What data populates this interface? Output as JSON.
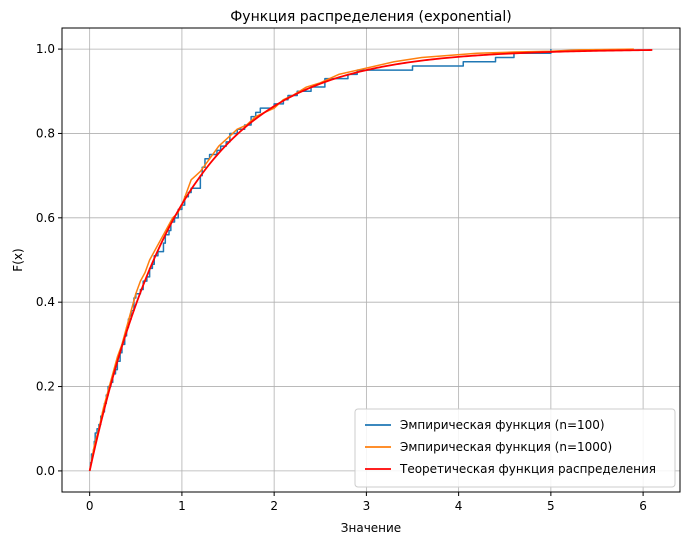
{
  "chart_data": {
    "type": "line",
    "title": "Функция распределения (exponential)",
    "xlabel": "Значение",
    "ylabel": "F(x)",
    "xlim": [
      -0.3,
      6.4
    ],
    "ylim": [
      -0.05,
      1.05
    ],
    "xticks": [
      0,
      1,
      2,
      3,
      4,
      5,
      6
    ],
    "yticks": [
      0.0,
      0.2,
      0.4,
      0.6,
      0.8,
      1.0
    ],
    "grid": true,
    "legend_position": "bottom-right",
    "series": [
      {
        "name": "Эмпирическая функция (n=100)",
        "color": "#1f77b4",
        "style": "step",
        "points": [
          [
            0.0,
            0.01
          ],
          [
            0.01,
            0.02
          ],
          [
            0.02,
            0.04
          ],
          [
            0.04,
            0.05
          ],
          [
            0.05,
            0.07
          ],
          [
            0.06,
            0.09
          ],
          [
            0.08,
            0.1
          ],
          [
            0.1,
            0.11
          ],
          [
            0.12,
            0.13
          ],
          [
            0.14,
            0.14
          ],
          [
            0.16,
            0.16
          ],
          [
            0.18,
            0.18
          ],
          [
            0.2,
            0.2
          ],
          [
            0.23,
            0.21
          ],
          [
            0.25,
            0.23
          ],
          [
            0.28,
            0.24
          ],
          [
            0.3,
            0.26
          ],
          [
            0.33,
            0.28
          ],
          [
            0.35,
            0.3
          ],
          [
            0.38,
            0.32
          ],
          [
            0.4,
            0.34
          ],
          [
            0.42,
            0.36
          ],
          [
            0.45,
            0.38
          ],
          [
            0.48,
            0.41
          ],
          [
            0.5,
            0.42
          ],
          [
            0.55,
            0.43
          ],
          [
            0.58,
            0.45
          ],
          [
            0.62,
            0.46
          ],
          [
            0.65,
            0.48
          ],
          [
            0.68,
            0.49
          ],
          [
            0.7,
            0.51
          ],
          [
            0.74,
            0.52
          ],
          [
            0.8,
            0.54
          ],
          [
            0.82,
            0.56
          ],
          [
            0.86,
            0.57
          ],
          [
            0.88,
            0.59
          ],
          [
            0.92,
            0.6
          ],
          [
            0.96,
            0.62
          ],
          [
            1.0,
            0.63
          ],
          [
            1.03,
            0.65
          ],
          [
            1.07,
            0.66
          ],
          [
            1.1,
            0.67
          ],
          [
            1.2,
            0.7
          ],
          [
            1.22,
            0.72
          ],
          [
            1.25,
            0.74
          ],
          [
            1.3,
            0.75
          ],
          [
            1.38,
            0.76
          ],
          [
            1.42,
            0.77
          ],
          [
            1.48,
            0.78
          ],
          [
            1.52,
            0.8
          ],
          [
            1.6,
            0.81
          ],
          [
            1.68,
            0.82
          ],
          [
            1.75,
            0.84
          ],
          [
            1.8,
            0.85
          ],
          [
            1.85,
            0.86
          ],
          [
            2.0,
            0.87
          ],
          [
            2.1,
            0.88
          ],
          [
            2.15,
            0.89
          ],
          [
            2.25,
            0.9
          ],
          [
            2.4,
            0.91
          ],
          [
            2.55,
            0.93
          ],
          [
            2.8,
            0.94
          ],
          [
            2.9,
            0.95
          ],
          [
            3.5,
            0.96
          ],
          [
            4.05,
            0.97
          ],
          [
            4.4,
            0.98
          ],
          [
            4.6,
            0.99
          ],
          [
            5.0,
            1.0
          ]
        ]
      },
      {
        "name": "Эмпирическая функция (n=1000)",
        "color": "#ff7f0e",
        "style": "line",
        "points": [
          [
            0.0,
            0.0
          ],
          [
            0.05,
            0.06
          ],
          [
            0.1,
            0.1
          ],
          [
            0.15,
            0.15
          ],
          [
            0.2,
            0.19
          ],
          [
            0.25,
            0.23
          ],
          [
            0.3,
            0.27
          ],
          [
            0.35,
            0.3
          ],
          [
            0.4,
            0.34
          ],
          [
            0.45,
            0.38
          ],
          [
            0.5,
            0.42
          ],
          [
            0.55,
            0.45
          ],
          [
            0.6,
            0.47
          ],
          [
            0.65,
            0.5
          ],
          [
            0.7,
            0.52
          ],
          [
            0.75,
            0.54
          ],
          [
            0.8,
            0.56
          ],
          [
            0.85,
            0.58
          ],
          [
            0.9,
            0.6
          ],
          [
            0.95,
            0.61
          ],
          [
            1.0,
            0.63
          ],
          [
            1.05,
            0.66
          ],
          [
            1.1,
            0.69
          ],
          [
            1.15,
            0.7
          ],
          [
            1.2,
            0.71
          ],
          [
            1.3,
            0.74
          ],
          [
            1.4,
            0.77
          ],
          [
            1.5,
            0.79
          ],
          [
            1.6,
            0.81
          ],
          [
            1.7,
            0.82
          ],
          [
            1.8,
            0.84
          ],
          [
            1.9,
            0.85
          ],
          [
            2.0,
            0.86
          ],
          [
            2.1,
            0.88
          ],
          [
            2.2,
            0.89
          ],
          [
            2.35,
            0.91
          ],
          [
            2.5,
            0.92
          ],
          [
            2.7,
            0.94
          ],
          [
            2.9,
            0.95
          ],
          [
            3.1,
            0.96
          ],
          [
            3.3,
            0.97
          ],
          [
            3.6,
            0.98
          ],
          [
            3.9,
            0.985
          ],
          [
            4.2,
            0.99
          ],
          [
            4.6,
            0.993
          ],
          [
            5.0,
            0.995
          ],
          [
            5.3,
            0.998
          ],
          [
            5.6,
            0.999
          ],
          [
            5.9,
            1.0
          ]
        ]
      },
      {
        "name": "Теоретическая функция распределения",
        "color": "#ff0000",
        "style": "line",
        "function": "exponential_cdf",
        "lambda": 1.0,
        "x_range": [
          0.0,
          6.1
        ]
      }
    ]
  }
}
